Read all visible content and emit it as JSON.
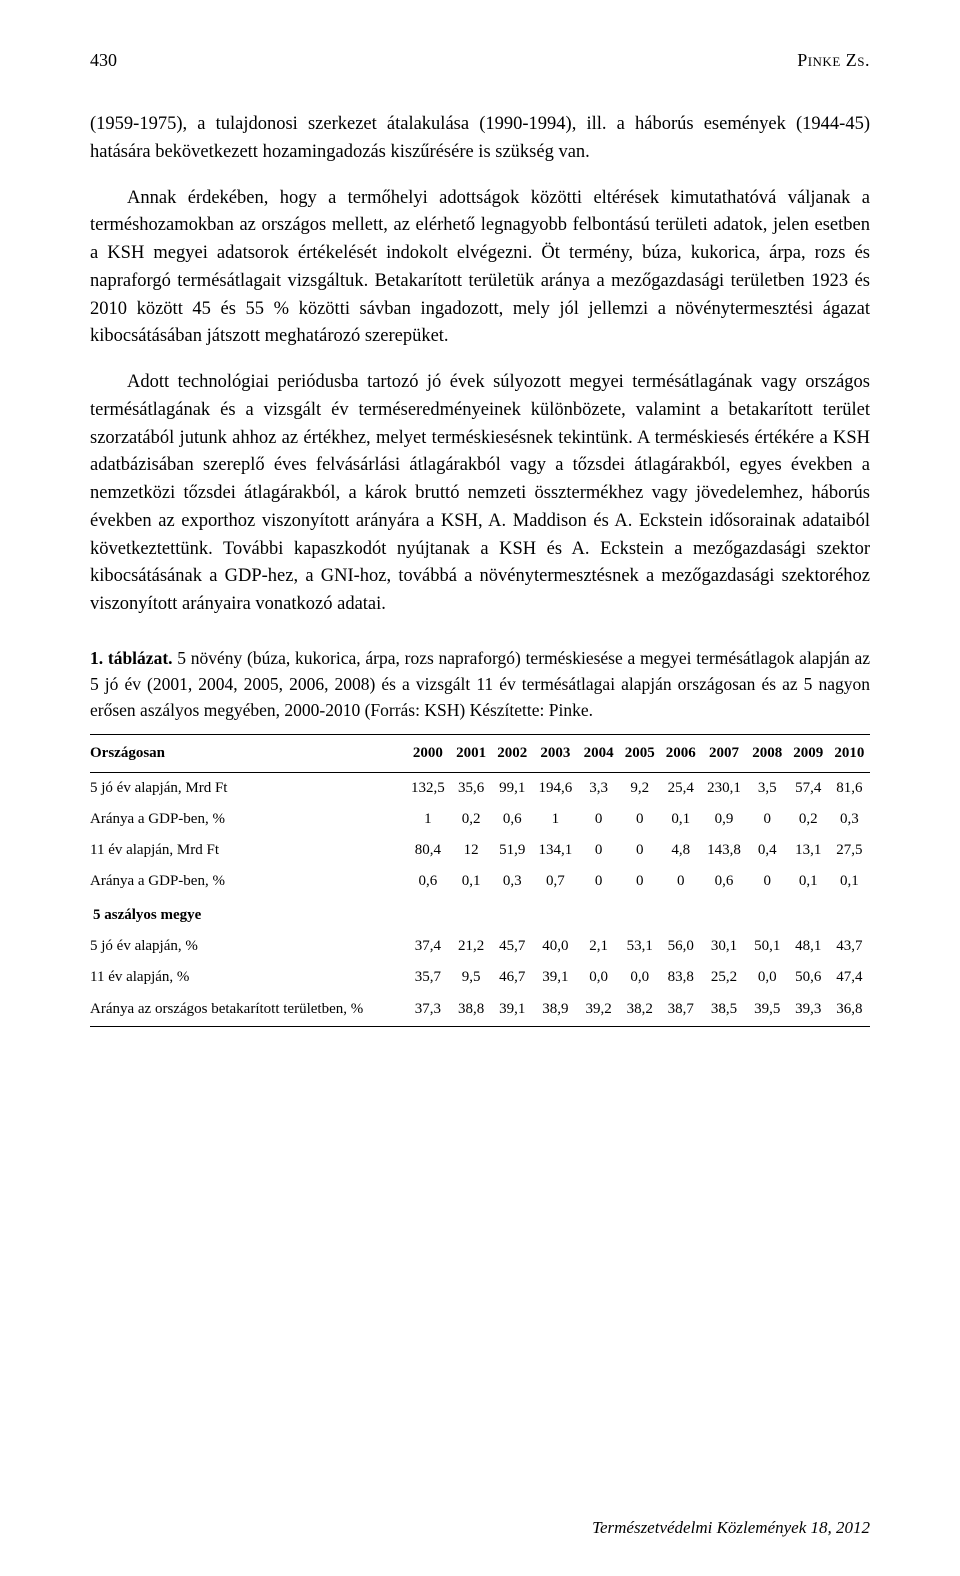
{
  "header": {
    "pageNumber": "430",
    "author": "Pinke Zs."
  },
  "paragraphs": {
    "p1": "(1959-1975), a tulajdonosi szerkezet átalakulása (1990-1994), ill. a háborús események (1944-45) hatására bekövetkezett hozamingadozás kiszűrésére is szükség van.",
    "p2": "Annak érdekében, hogy a termőhelyi adottságok közötti eltérések kimutathatóvá váljanak a terméshozamokban az országos mellett, az elérhető legnagyobb felbontású területi adatok, jelen esetben a KSH megyei adatsorok értékelését indokolt elvégezni. Öt termény, búza, kukorica, árpa, rozs és napraforgó termésátlagait vizsgáltuk. Betakarított területük aránya a mezőgazdasági területben 1923 és 2010 között 45 és 55 % közötti sávban ingadozott, mely jól jellemzi a növénytermesztési ágazat kibocsátásában játszott meghatározó szerepüket.",
    "p3": "Adott technológiai periódusba tartozó jó évek súlyozott megyei termésátlagának vagy országos termésátlagának és a vizsgált év terméseredményeinek különbözete, valamint a betakarított terület szorzatából jutunk ahhoz az értékhez, melyet terméskiesésnek tekintünk. A terméskiesés értékére a KSH adatbázisában szereplő éves felvásárlási átlagárakból vagy a tőzsdei átlagárakból, egyes években a nemzetközi tőzsdei átlagárakból, a károk bruttó nemzeti össztermékhez vagy jövedelemhez, háborús években az exporthoz viszonyított arányára a KSH, A. Maddison és A. Eckstein idősorainak adataiból következtettünk. További kapaszkodót nyújtanak a KSH és A. Eckstein a mezőgazdasági szektor kibocsátásának a GDP-hez, a GNI-hoz, továbbá a növénytermesztésnek a mezőgazdasági szektoréhoz viszonyított arányaira vonatkozó adatai."
  },
  "tableCaption": {
    "label": "1. táblázat.",
    "text": " 5 növény (búza, kukorica, árpa, rozs napraforgó) terméskiesése a megyei termésátlagok alapján az 5 jó év (2001, 2004, 2005, 2006, 2008) és a vizsgált 11 év termésátlagai alapján országosan és az 5 nagyon erősen aszályos megyében, 2000-2010 (Forrás: KSH) Készítette: Pinke."
  },
  "table": {
    "headerLabel": "Országosan",
    "years": [
      "2000",
      "2001",
      "2002",
      "2003",
      "2004",
      "2005",
      "2006",
      "2007",
      "2008",
      "2009",
      "2010"
    ],
    "rows": [
      {
        "label": "5 jó év alapján, Mrd Ft",
        "values": [
          "132,5",
          "35,6",
          "99,1",
          "194,6",
          "3,3",
          "9,2",
          "25,4",
          "230,1",
          "3,5",
          "57,4",
          "81,6"
        ]
      },
      {
        "label": "Aránya a GDP-ben, %",
        "values": [
          "1",
          "0,2",
          "0,6",
          "1",
          "0",
          "0",
          "0,1",
          "0,9",
          "0",
          "0,2",
          "0,3"
        ]
      },
      {
        "label": "11 év alapján, Mrd Ft",
        "values": [
          "80,4",
          "12",
          "51,9",
          "134,1",
          "0",
          "0",
          "4,8",
          "143,8",
          "0,4",
          "13,1",
          "27,5"
        ]
      },
      {
        "label": "Aránya a GDP-ben, %",
        "values": [
          "0,6",
          "0,1",
          "0,3",
          "0,7",
          "0",
          "0",
          "0",
          "0,6",
          "0",
          "0,1",
          "0,1"
        ]
      }
    ],
    "sectionLabel": "5 aszályos megye",
    "rows2": [
      {
        "label": "5 jó év alapján, %",
        "values": [
          "37,4",
          "21,2",
          "45,7",
          "40,0",
          "2,1",
          "53,1",
          "56,0",
          "30,1",
          "50,1",
          "48,1",
          "43,7"
        ]
      },
      {
        "label": "11 év alapján, %",
        "values": [
          "35,7",
          "9,5",
          "46,7",
          "39,1",
          "0,0",
          "0,0",
          "83,8",
          "25,2",
          "0,0",
          "50,6",
          "47,4"
        ]
      },
      {
        "label": "Aránya az országos betakarított területben, %",
        "values": [
          "37,3",
          "38,8",
          "39,1",
          "38,9",
          "39,2",
          "38,2",
          "38,7",
          "38,5",
          "39,5",
          "39,3",
          "36,8"
        ],
        "multiline": true
      }
    ]
  },
  "footer": "Természetvédelmi Közlemények 18, 2012"
}
